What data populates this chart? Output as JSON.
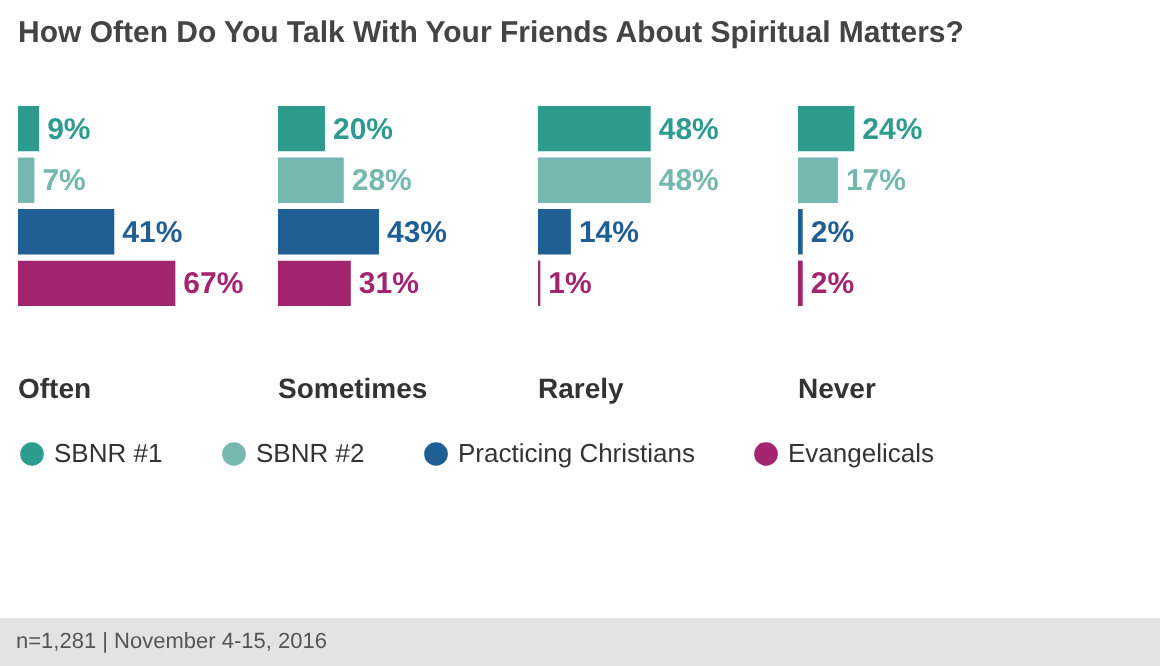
{
  "chart_data": [
    {
      "type": "bar",
      "orientation": "horizontal",
      "title": "How Often Do You Talk With Your Friends About Spiritual Matters?",
      "xlabel": "Often",
      "categories": [
        null
      ],
      "legend": "bottom",
      "annotations": [
        "n=1,281 | November 4-15, 2016"
      ],
      "series": [
        {
          "name": "SBNR #1",
          "color": "#2e9b8f",
          "values": [
            9
          ],
          "value_labels": [
            "9%"
          ]
        },
        {
          "name": "SBNR #2",
          "color": "#74b8af",
          "values": [
            7
          ],
          "value_labels": [
            "7%"
          ]
        },
        {
          "name": "Practicing Christians",
          "color": "#1f5f94",
          "values": [
            41
          ],
          "value_labels": [
            "41%"
          ]
        },
        {
          "name": "Evangelicals",
          "color": "#a3246f",
          "values": [
            67
          ],
          "value_labels": [
            "67%"
          ]
        }
      ]
    },
    {
      "type": "bar",
      "orientation": "horizontal",
      "xlabel": "Sometimes",
      "categories": [
        null
      ],
      "series": [
        {
          "name": "SBNR #1",
          "color": "#2e9b8f",
          "values": [
            20
          ],
          "value_labels": [
            "20%"
          ]
        },
        {
          "name": "SBNR #2",
          "color": "#74b8af",
          "values": [
            28
          ],
          "value_labels": [
            "28%"
          ]
        },
        {
          "name": "Practicing Christians",
          "color": "#1f5f94",
          "values": [
            43
          ],
          "value_labels": [
            "43%"
          ]
        },
        {
          "name": "Evangelicals",
          "color": "#a3246f",
          "values": [
            31
          ],
          "value_labels": [
            "31%"
          ]
        }
      ]
    },
    {
      "type": "bar",
      "orientation": "horizontal",
      "xlabel": "Rarely",
      "categories": [
        null
      ],
      "series": [
        {
          "name": "SBNR #1",
          "color": "#2e9b8f",
          "values": [
            48
          ],
          "value_labels": [
            "48%"
          ]
        },
        {
          "name": "SBNR #2",
          "color": "#74b8af",
          "values": [
            48
          ],
          "value_labels": [
            "48%"
          ]
        },
        {
          "name": "Practicing Christians",
          "color": "#1f5f94",
          "values": [
            14
          ],
          "value_labels": [
            "14%"
          ]
        },
        {
          "name": "Evangelicals",
          "color": "#a3246f",
          "values": [
            1
          ],
          "value_labels": [
            "1%"
          ]
        }
      ]
    },
    {
      "type": "bar",
      "orientation": "horizontal",
      "xlabel": "Never",
      "categories": [
        null
      ],
      "series": [
        {
          "name": "SBNR #1",
          "color": "#2e9b8f",
          "values": [
            24
          ],
          "value_labels": [
            "24%"
          ]
        },
        {
          "name": "SBNR #2",
          "color": "#74b8af",
          "values": [
            17
          ],
          "value_labels": [
            "17%"
          ]
        },
        {
          "name": "Practicing Christians",
          "color": "#1f5f94",
          "values": [
            2
          ],
          "value_labels": [
            "2%"
          ]
        },
        {
          "name": "Evangelicals",
          "color": "#a3246f",
          "values": [
            2
          ],
          "value_labels": [
            "2%"
          ]
        }
      ]
    }
  ]
}
